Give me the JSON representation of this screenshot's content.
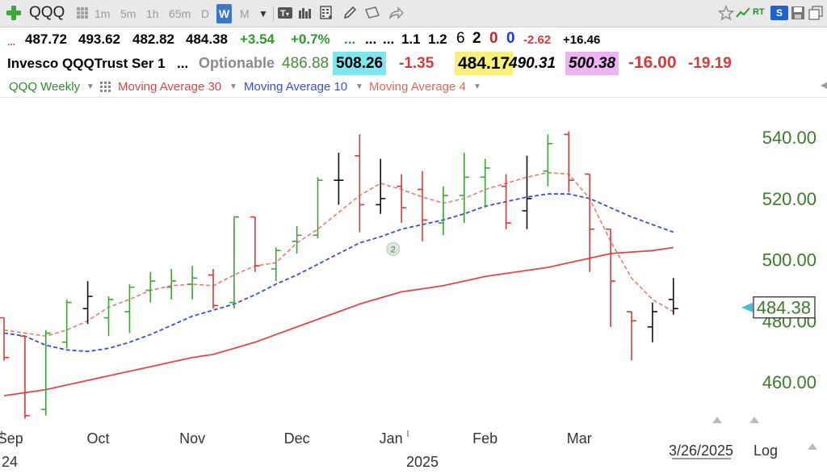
{
  "toolbar": {
    "symbol": "QQQ",
    "timeframes": [
      "1m",
      "5m",
      "1h",
      "65m",
      "D",
      "W",
      "M"
    ],
    "active_timeframe": "W",
    "rt_label": "RT",
    "s_label": "S"
  },
  "quote_row1": {
    "dots": "...",
    "open": "487.72",
    "high": "493.62",
    "low": "482.82",
    "close": "484.38",
    "change": "+3.54",
    "change_pct": "+0.7%",
    "dots2": "...",
    "dots3": "...",
    "dots4": "...",
    "v1": "1.1",
    "v2": "1.2",
    "v3": "6",
    "v4": "2",
    "v5": "0",
    "v6": "0",
    "v7": "-2.62",
    "v8": "+16.46"
  },
  "quote_row2": {
    "name": "Invesco QQQTrust Ser 1",
    "dots": "...",
    "optionable": "Optionable",
    "v1": "486.88",
    "v2": "508.26",
    "v3": "-1.35",
    "v4": "484.17",
    "v5": "490.31",
    "v6": "500.38",
    "v7": "-16.00",
    "v8": "-19.19"
  },
  "legend": {
    "series": "QQQ Weekly",
    "ma30": "Moving Average 30",
    "ma10": "Moving Average 10",
    "ma4": "Moving Average 4"
  },
  "colors": {
    "up": "#3fa33a",
    "down": "#d63b3b",
    "neutral": "#111111",
    "ma30": "#e04848",
    "ma10": "#3a4fd8",
    "ma4": "#e87c70",
    "axis_label": "#3d7a2a",
    "highlight_cyan": "#7fe6ef",
    "highlight_yellow": "#f7f07a",
    "highlight_pink": "#ecb4f2"
  },
  "chart_data": {
    "type": "ohlc",
    "y_ticks": [
      460,
      480,
      500,
      520,
      540
    ],
    "y_tick_labels": [
      "460.00",
      "480.00",
      "500.00",
      "520.00",
      "540.00"
    ],
    "ylim": [
      446,
      553
    ],
    "x_labels": [
      {
        "label": "Sep",
        "bar": 0.3
      },
      {
        "label": "Oct",
        "bar": 4.5
      },
      {
        "label": "Nov",
        "bar": 9
      },
      {
        "label": "Dec",
        "bar": 14
      },
      {
        "label": "Jan",
        "bar": 18.5
      },
      {
        "label": "Feb",
        "bar": 23
      },
      {
        "label": "Mar",
        "bar": 27.5
      }
    ],
    "year_left": "24",
    "year_center": "2025",
    "last_price_label": "484.38",
    "last_price": 484.38,
    "date_label": "3/26/2025",
    "scale_label": "Log",
    "event_marker": {
      "bar": 18.6,
      "value": 503.5,
      "label": "2"
    },
    "bars": [
      {
        "o": 481,
        "h": 481,
        "l": 467,
        "c": 468,
        "d": "down"
      },
      {
        "o": 475,
        "h": 475,
        "l": 448,
        "c": 449,
        "d": "down"
      },
      {
        "o": 451,
        "h": 477,
        "l": 449,
        "c": 476,
        "d": "up"
      },
      {
        "o": 473,
        "h": 487,
        "l": 471,
        "c": 486,
        "d": "up"
      },
      {
        "o": 484,
        "h": 493,
        "l": 479,
        "c": 488,
        "d": "neutral"
      },
      {
        "o": 481,
        "h": 488,
        "l": 475,
        "c": 487,
        "d": "up"
      },
      {
        "o": 483,
        "h": 492,
        "l": 476,
        "c": 491,
        "d": "up"
      },
      {
        "o": 490,
        "h": 496,
        "l": 486,
        "c": 493,
        "d": "up"
      },
      {
        "o": 491,
        "h": 497,
        "l": 487,
        "c": 493,
        "d": "up"
      },
      {
        "o": 492,
        "h": 498,
        "l": 487,
        "c": 494,
        "d": "up"
      },
      {
        "o": 495,
        "h": 497,
        "l": 484,
        "c": 485,
        "d": "down"
      },
      {
        "o": 486,
        "h": 514,
        "l": 484,
        "c": 514,
        "d": "up"
      },
      {
        "o": 514,
        "h": 514,
        "l": 496,
        "c": 498,
        "d": "down"
      },
      {
        "o": 497,
        "h": 504,
        "l": 493,
        "c": 503,
        "d": "up"
      },
      {
        "o": 506,
        "h": 511,
        "l": 502,
        "c": 508,
        "d": "up"
      },
      {
        "o": 508,
        "h": 527,
        "l": 507,
        "c": 526,
        "d": "up"
      },
      {
        "o": 526,
        "h": 535,
        "l": 518,
        "c": 526,
        "d": "neutral"
      },
      {
        "o": 534,
        "h": 541,
        "l": 509,
        "c": 518,
        "d": "down"
      },
      {
        "o": 518,
        "h": 533,
        "l": 515,
        "c": 520,
        "d": "neutral"
      },
      {
        "o": 524,
        "h": 528,
        "l": 512,
        "c": 517,
        "d": "down"
      },
      {
        "o": 523,
        "h": 529,
        "l": 506,
        "c": 513,
        "d": "down"
      },
      {
        "o": 512,
        "h": 524,
        "l": 508,
        "c": 521,
        "d": "up"
      },
      {
        "o": 521,
        "h": 535,
        "l": 512,
        "c": 527,
        "d": "up"
      },
      {
        "o": 527,
        "h": 533,
        "l": 517,
        "c": 530,
        "d": "up"
      },
      {
        "o": 524,
        "h": 528,
        "l": 510,
        "c": 512,
        "d": "down"
      },
      {
        "o": 516,
        "h": 534,
        "l": 510,
        "c": 520,
        "d": "neutral"
      },
      {
        "o": 529,
        "h": 541,
        "l": 524,
        "c": 538,
        "d": "up"
      },
      {
        "o": 541,
        "h": 542,
        "l": 522,
        "c": 526,
        "d": "down"
      },
      {
        "o": 528,
        "h": 528,
        "l": 496,
        "c": 510,
        "d": "down"
      },
      {
        "o": 510,
        "h": 510,
        "l": 478,
        "c": 493,
        "d": "down"
      },
      {
        "o": 483,
        "h": 483,
        "l": 467,
        "c": 480,
        "d": "down"
      },
      {
        "o": 478,
        "h": 486,
        "l": 473,
        "c": 483,
        "d": "neutral"
      },
      {
        "o": 487,
        "h": 494,
        "l": 482,
        "c": 484,
        "d": "neutral"
      }
    ],
    "ma30": [
      455.5,
      456.5,
      457.5,
      459,
      460.5,
      462,
      463.5,
      465,
      466.5,
      468,
      469,
      471,
      473,
      475.5,
      478,
      480.5,
      483,
      485.5,
      487.5,
      489.5,
      490.5,
      491.5,
      493,
      494.5,
      495.5,
      496.5,
      497.5,
      499,
      500.5,
      502,
      502.5,
      503,
      504
    ],
    "ma10": [
      476,
      475,
      472,
      470.5,
      470,
      471,
      473,
      475.5,
      478.5,
      481.5,
      483.5,
      485.5,
      488.5,
      492,
      495,
      498.5,
      502,
      505.5,
      507.5,
      510,
      511.5,
      513,
      515,
      517.5,
      519,
      520.5,
      521.5,
      521.5,
      520,
      517,
      514,
      511.5,
      509
    ],
    "ma4": [
      477,
      476,
      475,
      477,
      480,
      484.5,
      487,
      490,
      491.5,
      492,
      491.5,
      495,
      498,
      499,
      505.5,
      510,
      515.5,
      521,
      525,
      523,
      520.5,
      518.5,
      520,
      523,
      525,
      527,
      528.5,
      528,
      520,
      506,
      494,
      487,
      483
    ]
  }
}
